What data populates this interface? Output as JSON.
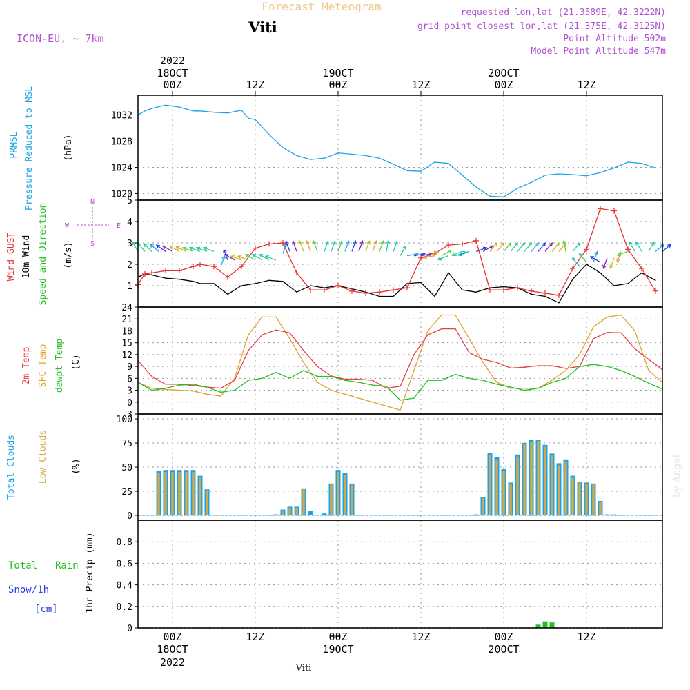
{
  "header": {
    "title": "Forecast Meteogram",
    "location": "Viti",
    "model": "ICON-EU, ~ 7km",
    "requested": "requested lon,lat (21.3589E, 42.3222N)",
    "gridpoint": "grid point closest lon,lat (21.375E, 42.3125N)",
    "point_alt": "Point Altitude 502m",
    "model_alt": "Model Point Altitude 547m",
    "credit": "by Angel",
    "footer": "Viti"
  },
  "time_axis": {
    "ticks": [
      "00Z",
      "12Z",
      "00Z",
      "12Z",
      "00Z",
      "12Z"
    ],
    "tick_hours": [
      0,
      12,
      24,
      36,
      48,
      60
    ],
    "date_labels": [
      {
        "hour": 0,
        "date": "18OCT",
        "year": "2022"
      },
      {
        "hour": 24,
        "date": "19OCT",
        "year": ""
      },
      {
        "hour": 48,
        "date": "20OCT",
        "year": ""
      }
    ],
    "range_hours": [
      -5,
      71
    ]
  },
  "panels": {
    "pressure": {
      "label1": "PRMSL",
      "label2": "Pressure Reduced to MSL",
      "unit": "(hPa)"
    },
    "wind": {
      "label1": "Wind GUST",
      "label2": "10m Wind",
      "label3": "Speed and Direction",
      "unit": "(m/s)",
      "compass_n": "N",
      "compass_s": "S",
      "compass_w": "W",
      "compass_e": "E"
    },
    "temp": {
      "label1": "2m Temp",
      "label2": "SFC Temp",
      "label3": "dewpt Temp",
      "unit": "(C)"
    },
    "cloud": {
      "label1": "Total Clouds",
      "label2": "Low Clouds",
      "unit": "(%)"
    },
    "precip": {
      "label1": "Total",
      "label1b": "Rain",
      "label2": "Snow/1h",
      "label3": "[cm]",
      "unit": "1hr Precip (mm)"
    }
  },
  "colors": {
    "pressure": "#1aa3e8",
    "gust": "#e83030",
    "wind": "#000000",
    "sfc": "#e0a030",
    "t2m": "#e84040",
    "dewpt": "#20c020",
    "tcc": "#1aa3e8",
    "lcc": "#d4a84a",
    "rain": "#20c020",
    "snow": "#3040e0",
    "label_purple": "#b050d0",
    "title_gold": "#f0c890"
  },
  "chart_data": [
    {
      "type": "line",
      "name": "pressure",
      "ylim": [
        1019,
        1035
      ],
      "yticks": [
        1020,
        1024,
        1028,
        1032
      ],
      "x": [
        -5,
        -4,
        -3,
        -1,
        1,
        3,
        4,
        6,
        8,
        10,
        11,
        12,
        14,
        16,
        18,
        20,
        22,
        24,
        26,
        28,
        30,
        32,
        34,
        36,
        38,
        40,
        42,
        44,
        46,
        48,
        50,
        52,
        54,
        56,
        58,
        60,
        62,
        64,
        66,
        68,
        70
      ],
      "series": [
        {
          "values": [
            1032,
            1032.6,
            1033,
            1033.5,
            1033.2,
            1032.6,
            1032.6,
            1032.4,
            1032.3,
            1032.7,
            1031.5,
            1031.3,
            1029,
            1027,
            1025.8,
            1025.2,
            1025.4,
            1026.2,
            1026,
            1025.8,
            1025.4,
            1024.5,
            1023.5,
            1023.4,
            1024.8,
            1024.6,
            1022.8,
            1021,
            1019.6,
            1019.5,
            1020.8,
            1021.7,
            1022.8,
            1023,
            1022.9,
            1022.7,
            1023.2,
            1023.9,
            1024.8,
            1024.6,
            1023.9
          ]
        }
      ]
    },
    {
      "type": "line",
      "name": "wind",
      "ylim": [
        0,
        5
      ],
      "yticks": [
        1,
        2,
        3,
        4,
        5
      ],
      "x": [
        -5,
        -4,
        -3,
        -1,
        1,
        3,
        4,
        6,
        8,
        10,
        12,
        14,
        16,
        18,
        20,
        22,
        24,
        26,
        28,
        30,
        32,
        34,
        36,
        38,
        40,
        42,
        44,
        46,
        48,
        50,
        52,
        54,
        56,
        58,
        60,
        62,
        64,
        66,
        68,
        70
      ],
      "series": [
        {
          "name": "Wind GUST",
          "values": [
            1.05,
            1.55,
            1.6,
            1.7,
            1.7,
            1.9,
            2.0,
            1.9,
            1.4,
            1.9,
            2.75,
            2.95,
            3.0,
            1.6,
            0.8,
            0.8,
            1.0,
            0.75,
            0.65,
            0.7,
            0.8,
            0.9,
            2.3,
            2.5,
            2.9,
            2.95,
            3.1,
            0.8,
            0.8,
            0.9,
            0.75,
            0.65,
            0.55,
            1.8,
            2.7,
            4.6,
            4.5,
            2.7,
            1.8,
            0.75
          ]
        },
        {
          "name": "10m Wind",
          "values": [
            1.4,
            1.55,
            1.5,
            1.35,
            1.3,
            1.2,
            1.1,
            1.1,
            0.6,
            1.0,
            1.1,
            1.25,
            1.2,
            0.7,
            1.0,
            0.9,
            1.0,
            0.85,
            0.7,
            0.5,
            0.5,
            1.1,
            1.15,
            0.5,
            1.6,
            0.8,
            0.7,
            0.9,
            0.95,
            0.9,
            0.6,
            0.5,
            0.2,
            1.3,
            2.0,
            1.6,
            1.0,
            1.1,
            1.6,
            1.25
          ]
        }
      ]
    },
    {
      "type": "line",
      "name": "temperature",
      "ylim": [
        -3,
        24
      ],
      "yticks": [
        -3,
        0,
        3,
        6,
        9,
        12,
        15,
        18,
        21,
        24
      ],
      "x": [
        -5,
        -3,
        -1,
        1,
        3,
        5,
        7,
        9,
        11,
        13,
        15,
        17,
        19,
        21,
        23,
        25,
        27,
        29,
        31,
        33,
        35,
        37,
        39,
        41,
        43,
        45,
        47,
        49,
        51,
        53,
        55,
        57,
        59,
        61,
        63,
        65,
        67,
        69,
        71
      ],
      "series": [
        {
          "name": "2m Temp",
          "values": [
            10.5,
            6.5,
            4.5,
            4.5,
            4.2,
            3.8,
            3.5,
            5.5,
            13,
            17,
            18.2,
            17.5,
            13,
            9,
            6.6,
            5.8,
            5.8,
            5.5,
            3.5,
            4,
            12,
            17,
            18.5,
            18.5,
            12.5,
            10.8,
            10,
            8.6,
            8.8,
            9.2,
            9.2,
            8.5,
            9,
            16,
            17.6,
            17.5,
            13.5,
            10.8,
            8.2
          ]
        },
        {
          "name": "SFC Temp",
          "values": [
            5,
            3.5,
            3.2,
            3,
            2.8,
            2,
            1.5,
            6,
            17,
            21.5,
            21.5,
            16,
            10,
            5,
            3,
            2,
            1,
            0,
            -1,
            -2,
            8,
            18,
            22,
            22,
            16,
            10,
            5,
            3.5,
            3.5,
            3.5,
            5.5,
            8,
            12,
            19,
            21.5,
            22,
            18,
            8,
            5
          ]
        },
        {
          "name": "dewpt Temp",
          "values": [
            5,
            3,
            3.5,
            4.3,
            4.5,
            3.8,
            2.5,
            3,
            5.5,
            6,
            7.5,
            6,
            8,
            6.5,
            6.5,
            5.5,
            5,
            4.3,
            4,
            0.5,
            1,
            5.5,
            5.5,
            7,
            6,
            5.5,
            4.5,
            3.8,
            3,
            3.5,
            5,
            6,
            9,
            9.5,
            9,
            8,
            6.5,
            4.8,
            3.3
          ]
        }
      ]
    },
    {
      "type": "bar",
      "name": "clouds",
      "ylim": [
        -5,
        105
      ],
      "yticks": [
        0,
        25,
        50,
        75,
        100
      ],
      "series": [
        {
          "name": "Total Clouds",
          "x": [
            -2,
            -1,
            0,
            1,
            2,
            3,
            4,
            5,
            15,
            16,
            17,
            18,
            19,
            20,
            22,
            23,
            24,
            25,
            26,
            44,
            45,
            46,
            47,
            48,
            49,
            50,
            51,
            52,
            53,
            54,
            55,
            56,
            57,
            58,
            59,
            60,
            61,
            62,
            63,
            64
          ],
          "values": [
            46,
            47,
            47,
            47,
            47,
            47,
            41,
            27,
            1,
            6,
            9,
            9,
            28,
            5,
            2,
            33,
            47,
            44,
            33,
            1,
            19,
            65,
            60,
            48,
            34,
            63,
            75,
            78,
            78,
            73,
            64,
            54,
            58,
            41,
            35,
            34,
            33,
            15,
            1,
            1
          ]
        },
        {
          "name": "Low Clouds",
          "x": [
            -2,
            -1,
            0,
            1,
            2,
            3,
            4,
            5,
            16,
            17,
            18,
            19,
            23,
            24,
            25,
            26,
            45,
            46,
            47,
            48,
            49,
            50,
            51,
            52,
            53,
            54,
            55,
            56,
            57,
            58,
            59,
            60,
            61,
            62
          ],
          "values": [
            44,
            45,
            45,
            45,
            45,
            45,
            40,
            26,
            5,
            8,
            8,
            27,
            32,
            45,
            42,
            32,
            18,
            63,
            58,
            46,
            33,
            61,
            74,
            76,
            77,
            71,
            62,
            52,
            56,
            39,
            34,
            33,
            32,
            14
          ]
        }
      ]
    },
    {
      "type": "bar",
      "name": "precip",
      "ylim": [
        0,
        1
      ],
      "yticks": [
        0,
        0.2,
        0.4,
        0.6,
        0.8
      ],
      "series": [
        {
          "name": "Total Rain",
          "x": [
            53,
            54,
            55
          ],
          "values": [
            0.03,
            0.06,
            0.05
          ]
        },
        {
          "name": "Snow/1h",
          "x": [],
          "values": []
        }
      ]
    }
  ],
  "wind_barbs": {
    "comment_free": true,
    "x": [
      -5,
      -4,
      -3,
      -2,
      -1,
      0,
      1,
      2,
      3,
      4,
      5,
      6,
      7,
      8,
      9,
      10,
      11,
      12,
      13,
      14,
      15,
      16,
      17,
      18,
      19,
      20,
      21,
      22,
      23,
      24,
      25,
      26,
      27,
      28,
      29,
      30,
      31,
      32,
      33,
      34,
      35,
      36,
      37,
      38,
      39,
      40,
      41,
      42,
      43,
      44,
      45,
      46,
      47,
      48,
      49,
      50,
      51,
      52,
      53,
      54,
      55,
      56,
      57,
      58,
      59,
      60,
      61,
      62,
      63,
      64,
      65,
      66,
      67,
      68,
      69,
      70,
      71
    ],
    "dir_deg": [
      330,
      320,
      315,
      310,
      305,
      300,
      300,
      295,
      290,
      290,
      290,
      290,
      20,
      340,
      300,
      290,
      290,
      300,
      300,
      300,
      290,
      20,
      340,
      340,
      340,
      340,
      340,
      20,
      20,
      20,
      20,
      20,
      20,
      20,
      20,
      20,
      10,
      20,
      30,
      80,
      80,
      80,
      70,
      260,
      60,
      250,
      70,
      250,
      250,
      70,
      60,
      40,
      40,
      40,
      40,
      40,
      40,
      40,
      40,
      40,
      40,
      40,
      350,
      40,
      320,
      320,
      20,
      300,
      200,
      200,
      200,
      250,
      330,
      330,
      30,
      50,
      50
    ],
    "yval": [
      2.6,
      2.6,
      2.6,
      2.6,
      2.6,
      2.6,
      2.6,
      2.6,
      2.6,
      2.6,
      2.6,
      2.6,
      1.9,
      2.2,
      2.2,
      2.2,
      2.2,
      2.2,
      2.2,
      2.2,
      2.2,
      2.5,
      2.6,
      2.6,
      2.6,
      2.6,
      2.6,
      2.6,
      2.6,
      2.6,
      2.6,
      2.6,
      2.6,
      2.6,
      2.6,
      2.6,
      2.6,
      2.6,
      2.4,
      2.4,
      2.4,
      2.4,
      2.4,
      2.4,
      2.4,
      2.4,
      2.4,
      2.6,
      2.6,
      2.6,
      2.6,
      2.6,
      2.6,
      2.6,
      2.6,
      2.6,
      2.6,
      2.6,
      2.6,
      2.6,
      2.6,
      2.6,
      2.6,
      2.6,
      1.9,
      2.1,
      2.1,
      2.1,
      2.3,
      2.3,
      2.6,
      2.6,
      2.6,
      2.6,
      2.6,
      2.6,
      2.6
    ]
  }
}
